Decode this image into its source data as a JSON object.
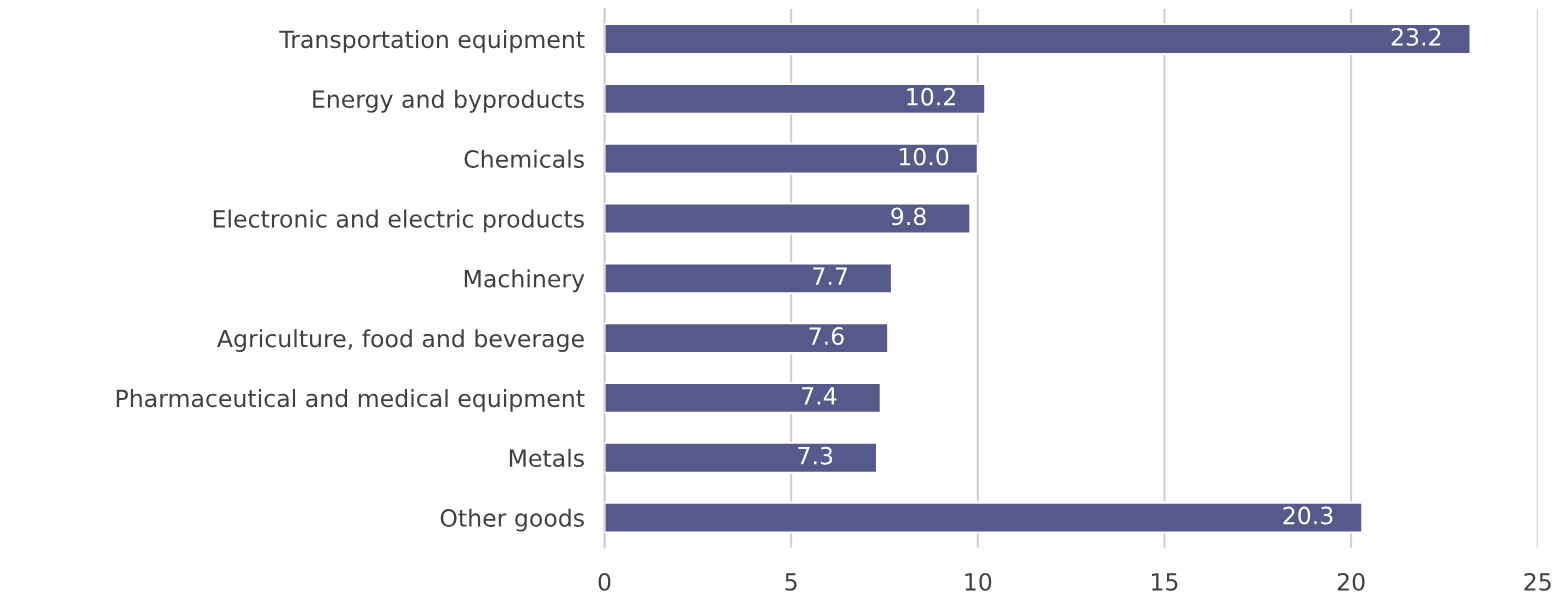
{
  "chart_data": {
    "type": "bar",
    "orientation": "horizontal",
    "categories": [
      "Transportation equipment",
      "Energy and byproducts",
      "Chemicals",
      "Electronic and electric products",
      "Machinery",
      "Agriculture, food and beverage",
      "Pharmaceutical and medical equipment",
      "Metals",
      "Other goods"
    ],
    "values": [
      23.2,
      10.2,
      10.0,
      9.8,
      7.7,
      7.6,
      7.4,
      7.3,
      20.3
    ],
    "value_labels": [
      "23.2",
      "10.2",
      "10.0",
      "9.8",
      "7.7",
      "7.6",
      "7.4",
      "7.3",
      "20.3"
    ],
    "color": "#555a8a",
    "xlim": [
      0,
      25
    ],
    "xticks": [
      0,
      5,
      10,
      15,
      20,
      25
    ],
    "grid": "x"
  }
}
